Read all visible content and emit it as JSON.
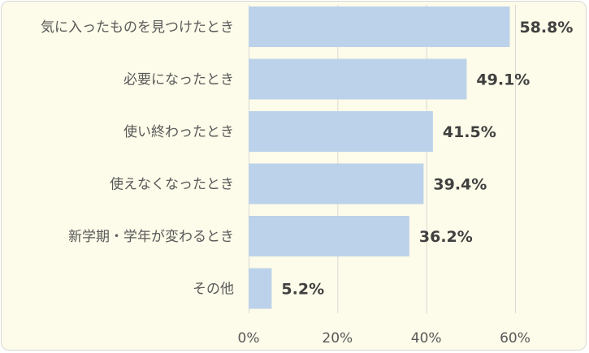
{
  "chart_data": {
    "type": "bar",
    "orientation": "horizontal",
    "categories": [
      "気に入ったものを見つけたとき",
      "必要になったとき",
      "使い終わったとき",
      "使えなくなったとき",
      "新学期・学年が変わるとき",
      "その他"
    ],
    "values": [
      58.8,
      49.1,
      41.5,
      39.4,
      36.2,
      5.2
    ],
    "value_labels": [
      "58.8%",
      "49.1%",
      "41.5%",
      "39.4%",
      "36.2%",
      "5.2%"
    ],
    "xlim": [
      0,
      70
    ],
    "xticks": [
      0,
      20,
      40,
      60
    ],
    "xtick_labels": [
      "0%",
      "20%",
      "40%",
      "60%"
    ],
    "grid": true,
    "bar_color": "#bcd2ea",
    "background": "#fdfbe9",
    "legend": "none"
  }
}
